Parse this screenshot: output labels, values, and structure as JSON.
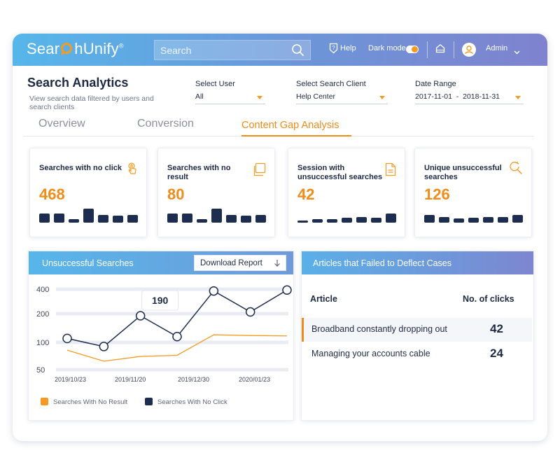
{
  "header": {
    "logo_left": "Sear",
    "logo_right": "hUnify",
    "logo_reg": "®",
    "search_placeholder": "Search",
    "help_label": "Help",
    "dark_mode_label": "Dark mode",
    "dark_mode_on": true,
    "user_label": "Admin"
  },
  "page": {
    "title": "Search Analytics",
    "subtitle": "View search data filtered by users and search clients"
  },
  "filters": [
    {
      "label": "Select User",
      "value": "All"
    },
    {
      "label": "Select Search Client",
      "value": "Help Center"
    },
    {
      "label": "Date Range",
      "value": "2017-11-01  -  2018-11-31"
    }
  ],
  "tabs": [
    {
      "label": "Overview",
      "active": false
    },
    {
      "label": "Conversion",
      "active": false
    },
    {
      "label": "Content Gap Analysis",
      "active": true
    }
  ],
  "cards": [
    {
      "title": "Searches with no click",
      "value": "468",
      "icon": "hand-pointer-icon",
      "bars": [
        0.55,
        0.55,
        0.2,
        0.85,
        0.45,
        0.4,
        0.45
      ]
    },
    {
      "title": "Searches with no result",
      "value": "80",
      "icon": "copy-icon",
      "bars": [
        0.55,
        0.55,
        0.2,
        0.85,
        0.45,
        0.4,
        0.45
      ]
    },
    {
      "title": "Session with unsuccessful searches",
      "value": "42",
      "icon": "document-icon",
      "bars": [
        0.12,
        0.2,
        0.2,
        0.3,
        0.35,
        0.3,
        0.55
      ]
    },
    {
      "title": "Unique unsuccessful searches",
      "value": "126",
      "icon": "search-refresh-icon",
      "bars": [
        0.45,
        0.35,
        0.25,
        0.3,
        0.35,
        0.35,
        0.45
      ]
    }
  ],
  "unsuccessful": {
    "title": "Unsuccessful Searches",
    "download_label": "Download Report",
    "tooltip": "190",
    "legend": [
      {
        "label": "Searches With No Result",
        "color": "#f59a23"
      },
      {
        "label": "Searches With No Click",
        "color": "#1d2d4f"
      }
    ]
  },
  "chart_data": {
    "type": "line",
    "title": "Unsuccessful Searches",
    "y_ticks": [
      "400",
      "200",
      "100",
      "50"
    ],
    "x_ticks": [
      "2019/10/23",
      "2019/11/20",
      "2019/12/30",
      "2020/01/23"
    ],
    "series": [
      {
        "name": "Searches With No Click",
        "color": "#1d2d4f",
        "values": [
          110,
          90,
          190,
          115,
          380,
          210,
          390
        ]
      },
      {
        "name": "Searches With No Result",
        "color": "#f59a23",
        "values": [
          82,
          62,
          70,
          72,
          120,
          118,
          117
        ]
      }
    ],
    "markers_on": "Searches With No Click",
    "tooltip_index": 2,
    "grid": true
  },
  "articles": {
    "title": "Articles that Failed to Deflect Cases",
    "col_article": "Article",
    "col_clicks": "No. of clicks",
    "rows": [
      {
        "article": "Broadband constantly dropping out",
        "clicks": "42",
        "highlighted": true
      },
      {
        "article": "Managing your accounts cable",
        "clicks": "24",
        "highlighted": false
      }
    ]
  },
  "colors": {
    "accent": "#f08c1a",
    "navy": "#1d2d4f",
    "header_gradient_start": "#56b6ea",
    "header_gradient_end": "#7f82cf"
  }
}
